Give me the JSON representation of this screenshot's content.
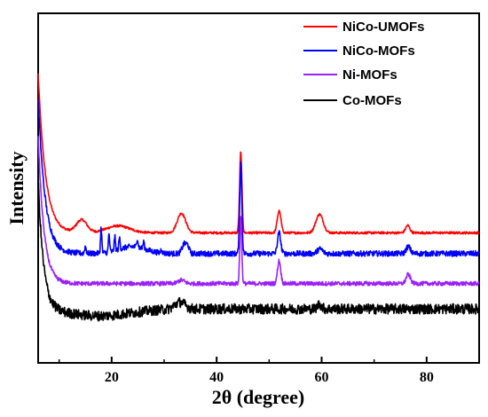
{
  "chart_data": {
    "type": "line",
    "xlabel": "2θ (degree)",
    "ylabel": "Intensity",
    "xlim": [
      6,
      90
    ],
    "x_ticks": [
      20,
      40,
      60,
      80
    ],
    "x_tick_labels": [
      "20",
      "40",
      "60",
      "80"
    ],
    "y_ticks_shown": false,
    "y_unit": "arbitrary (offset, stacked)",
    "grid": false,
    "legend_position": "top-right",
    "series": [
      {
        "name": "NiCo-UMOFs",
        "color": "#ff0000",
        "baseline": 26,
        "noise": 0.25,
        "start_level": 95,
        "start_decay": 1.4,
        "features": [
          {
            "x": 14.3,
            "height": 5.5,
            "width": 1.0
          },
          {
            "x": 21.2,
            "height": 3.0,
            "width": 2.2
          },
          {
            "x": 33.3,
            "height": 8.5,
            "width": 0.8
          },
          {
            "x": 44.6,
            "height": 35,
            "width": 0.22
          },
          {
            "x": 51.9,
            "height": 9.5,
            "width": 0.35
          },
          {
            "x": 59.6,
            "height": 8,
            "width": 0.7
          },
          {
            "x": 76.4,
            "height": 3.2,
            "width": 0.4
          }
        ]
      },
      {
        "name": "NiCo-MOFs",
        "color": "#0000ff",
        "baseline": 17,
        "noise": 0.6,
        "start_level": 85,
        "start_decay": 1.3,
        "features": [
          {
            "x": 15.0,
            "height": 3,
            "width": 0.15
          },
          {
            "x": 18.0,
            "height": 11,
            "width": 0.12
          },
          {
            "x": 19.5,
            "height": 8,
            "width": 0.12
          },
          {
            "x": 20.6,
            "height": 6,
            "width": 0.12
          },
          {
            "x": 21.5,
            "height": 5,
            "width": 0.12
          },
          {
            "x": 24.0,
            "height": 3,
            "width": 2.5
          },
          {
            "x": 24.9,
            "height": 4,
            "width": 0.12
          },
          {
            "x": 26.1,
            "height": 3,
            "width": 0.12
          },
          {
            "x": 29.5,
            "height": 2,
            "width": 0.12
          },
          {
            "x": 33.8,
            "height": 4,
            "width": 0.4
          },
          {
            "x": 34.5,
            "height": 3,
            "width": 0.3
          },
          {
            "x": 44.6,
            "height": 40,
            "width": 0.2
          },
          {
            "x": 51.9,
            "height": 9,
            "width": 0.3
          },
          {
            "x": 59.7,
            "height": 2,
            "width": 0.5
          },
          {
            "x": 76.5,
            "height": 3,
            "width": 0.4
          }
        ]
      },
      {
        "name": "Ni-MOFs",
        "color": "#9a1fff",
        "baseline": 4,
        "noise": 0.45,
        "start_level": 68,
        "start_decay": 1.1,
        "features": [
          {
            "x": 33.3,
            "height": 1.5,
            "width": 0.6
          },
          {
            "x": 44.6,
            "height": 30,
            "width": 0.18
          },
          {
            "x": 51.9,
            "height": 10,
            "width": 0.3
          },
          {
            "x": 76.5,
            "height": 4,
            "width": 0.4
          }
        ]
      },
      {
        "name": "Co-MOFs",
        "color": "#000000",
        "baseline": -7,
        "noise": 1.1,
        "start_level": 50,
        "start_decay": 1.0,
        "features": [
          {
            "x": 17.5,
            "height": -3,
            "width": 6
          },
          {
            "x": 33.0,
            "height": 3,
            "width": 1.0
          },
          {
            "x": 59.6,
            "height": 2,
            "width": 0.4
          }
        ]
      }
    ]
  }
}
